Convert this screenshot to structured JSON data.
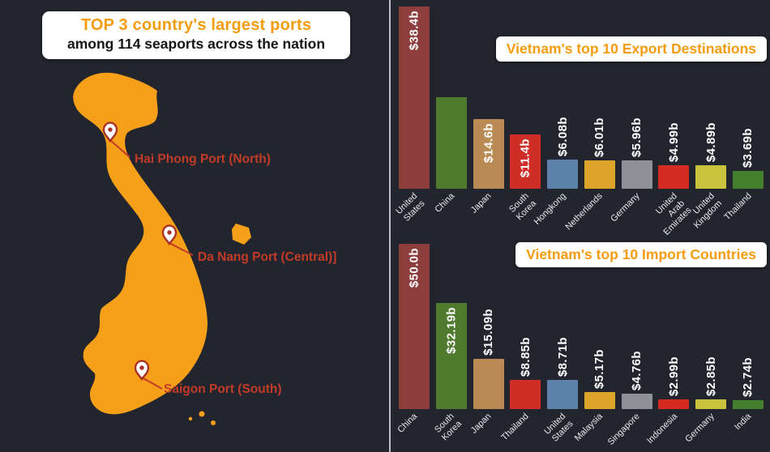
{
  "header": {
    "title": "TOP 3 country's largest ports",
    "subtitle": "among 114 seaports across the nation"
  },
  "map": {
    "ports": [
      {
        "label": "Hai Phong Port (North)"
      },
      {
        "label": "Da Nang Port (Central)]"
      },
      {
        "label": "Saigon Port (South)"
      }
    ]
  },
  "chart_data": [
    {
      "type": "bar",
      "title": "Vietnam's top 10 Export Destinations",
      "categories": [
        "United States",
        "China",
        "Japan",
        "South Korea",
        "Hongkong",
        "Netherlands",
        "Germany",
        "United Arab Emirates",
        "United Kingdom",
        "Thailand"
      ],
      "values": [
        38.4,
        19.3,
        14.6,
        11.4,
        6.08,
        6.01,
        5.96,
        4.99,
        4.89,
        3.69
      ],
      "value_labels": [
        "$38.4b",
        "",
        "$14.6b",
        "$11.4b",
        "$6.08b",
        "$6.01b",
        "$5.96b",
        "$4.99b",
        "$4.89b",
        "$3.69b"
      ],
      "label_inside": [
        true,
        false,
        true,
        true,
        false,
        false,
        false,
        false,
        false,
        false
      ],
      "ylim": [
        0,
        38.4
      ],
      "legend": "none",
      "grid": "off"
    },
    {
      "type": "bar",
      "title": "Vietnam's top 10 Import Countries",
      "categories": [
        "China",
        "South Korea",
        "Japan",
        "Thailand",
        "United States",
        "Malaysia",
        "Singapore",
        "Indonesia",
        "Germany",
        "India"
      ],
      "values": [
        50.0,
        32.19,
        15.09,
        8.85,
        8.71,
        5.17,
        4.76,
        2.99,
        2.85,
        2.74
      ],
      "value_labels": [
        "$50.0b",
        "$32.19b",
        "$15.09b",
        "$8.85b",
        "$8.71b",
        "$5.17b",
        "$4.76b",
        "$2.99b",
        "$2.85b",
        "$2.74b"
      ],
      "label_inside": [
        true,
        true,
        false,
        false,
        false,
        false,
        false,
        false,
        false,
        false
      ],
      "ylim": [
        0,
        50.0
      ],
      "legend": "none",
      "grid": "off"
    }
  ],
  "palette": [
    "#8e3d3d",
    "#507a2e",
    "#b98a54",
    "#cf2e27",
    "#5c82ab",
    "#dda42c",
    "#8f9196",
    "#d32b20",
    "#c9c23c",
    "#44802c"
  ],
  "colors": {
    "bg": "#22242e",
    "orange": "#f59c0e",
    "map_orange": "#f6a01a",
    "red": "#c23b27",
    "label_text": "#e9e9ec"
  }
}
